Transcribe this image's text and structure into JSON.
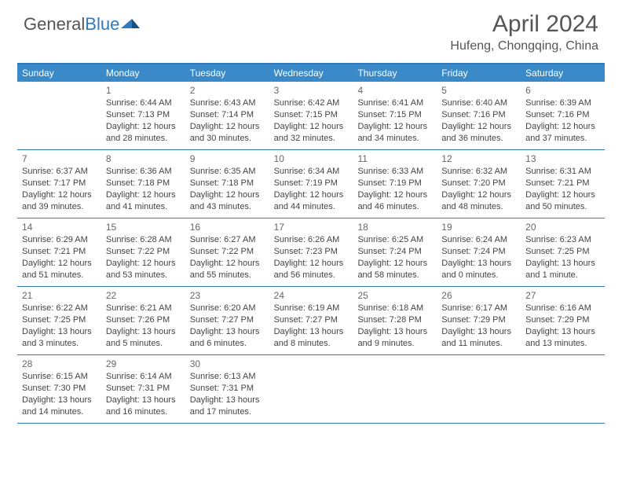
{
  "brand": {
    "name_a": "General",
    "name_b": "Blue"
  },
  "title": "April 2024",
  "location": "Hufeng, Chongqing, China",
  "colors": {
    "header_bg": "#3a8ac9",
    "border": "#2f7abf",
    "text": "#444444",
    "title_text": "#555555",
    "white": "#ffffff"
  },
  "weekdays": [
    "Sunday",
    "Monday",
    "Tuesday",
    "Wednesday",
    "Thursday",
    "Friday",
    "Saturday"
  ],
  "weeks": [
    [
      null,
      {
        "n": "1",
        "sr": "Sunrise: 6:44 AM",
        "ss": "Sunset: 7:13 PM",
        "d1": "Daylight: 12 hours",
        "d2": "and 28 minutes."
      },
      {
        "n": "2",
        "sr": "Sunrise: 6:43 AM",
        "ss": "Sunset: 7:14 PM",
        "d1": "Daylight: 12 hours",
        "d2": "and 30 minutes."
      },
      {
        "n": "3",
        "sr": "Sunrise: 6:42 AM",
        "ss": "Sunset: 7:15 PM",
        "d1": "Daylight: 12 hours",
        "d2": "and 32 minutes."
      },
      {
        "n": "4",
        "sr": "Sunrise: 6:41 AM",
        "ss": "Sunset: 7:15 PM",
        "d1": "Daylight: 12 hours",
        "d2": "and 34 minutes."
      },
      {
        "n": "5",
        "sr": "Sunrise: 6:40 AM",
        "ss": "Sunset: 7:16 PM",
        "d1": "Daylight: 12 hours",
        "d2": "and 36 minutes."
      },
      {
        "n": "6",
        "sr": "Sunrise: 6:39 AM",
        "ss": "Sunset: 7:16 PM",
        "d1": "Daylight: 12 hours",
        "d2": "and 37 minutes."
      }
    ],
    [
      {
        "n": "7",
        "sr": "Sunrise: 6:37 AM",
        "ss": "Sunset: 7:17 PM",
        "d1": "Daylight: 12 hours",
        "d2": "and 39 minutes."
      },
      {
        "n": "8",
        "sr": "Sunrise: 6:36 AM",
        "ss": "Sunset: 7:18 PM",
        "d1": "Daylight: 12 hours",
        "d2": "and 41 minutes."
      },
      {
        "n": "9",
        "sr": "Sunrise: 6:35 AM",
        "ss": "Sunset: 7:18 PM",
        "d1": "Daylight: 12 hours",
        "d2": "and 43 minutes."
      },
      {
        "n": "10",
        "sr": "Sunrise: 6:34 AM",
        "ss": "Sunset: 7:19 PM",
        "d1": "Daylight: 12 hours",
        "d2": "and 44 minutes."
      },
      {
        "n": "11",
        "sr": "Sunrise: 6:33 AM",
        "ss": "Sunset: 7:19 PM",
        "d1": "Daylight: 12 hours",
        "d2": "and 46 minutes."
      },
      {
        "n": "12",
        "sr": "Sunrise: 6:32 AM",
        "ss": "Sunset: 7:20 PM",
        "d1": "Daylight: 12 hours",
        "d2": "and 48 minutes."
      },
      {
        "n": "13",
        "sr": "Sunrise: 6:31 AM",
        "ss": "Sunset: 7:21 PM",
        "d1": "Daylight: 12 hours",
        "d2": "and 50 minutes."
      }
    ],
    [
      {
        "n": "14",
        "sr": "Sunrise: 6:29 AM",
        "ss": "Sunset: 7:21 PM",
        "d1": "Daylight: 12 hours",
        "d2": "and 51 minutes."
      },
      {
        "n": "15",
        "sr": "Sunrise: 6:28 AM",
        "ss": "Sunset: 7:22 PM",
        "d1": "Daylight: 12 hours",
        "d2": "and 53 minutes."
      },
      {
        "n": "16",
        "sr": "Sunrise: 6:27 AM",
        "ss": "Sunset: 7:22 PM",
        "d1": "Daylight: 12 hours",
        "d2": "and 55 minutes."
      },
      {
        "n": "17",
        "sr": "Sunrise: 6:26 AM",
        "ss": "Sunset: 7:23 PM",
        "d1": "Daylight: 12 hours",
        "d2": "and 56 minutes."
      },
      {
        "n": "18",
        "sr": "Sunrise: 6:25 AM",
        "ss": "Sunset: 7:24 PM",
        "d1": "Daylight: 12 hours",
        "d2": "and 58 minutes."
      },
      {
        "n": "19",
        "sr": "Sunrise: 6:24 AM",
        "ss": "Sunset: 7:24 PM",
        "d1": "Daylight: 13 hours",
        "d2": "and 0 minutes."
      },
      {
        "n": "20",
        "sr": "Sunrise: 6:23 AM",
        "ss": "Sunset: 7:25 PM",
        "d1": "Daylight: 13 hours",
        "d2": "and 1 minute."
      }
    ],
    [
      {
        "n": "21",
        "sr": "Sunrise: 6:22 AM",
        "ss": "Sunset: 7:25 PM",
        "d1": "Daylight: 13 hours",
        "d2": "and 3 minutes."
      },
      {
        "n": "22",
        "sr": "Sunrise: 6:21 AM",
        "ss": "Sunset: 7:26 PM",
        "d1": "Daylight: 13 hours",
        "d2": "and 5 minutes."
      },
      {
        "n": "23",
        "sr": "Sunrise: 6:20 AM",
        "ss": "Sunset: 7:27 PM",
        "d1": "Daylight: 13 hours",
        "d2": "and 6 minutes."
      },
      {
        "n": "24",
        "sr": "Sunrise: 6:19 AM",
        "ss": "Sunset: 7:27 PM",
        "d1": "Daylight: 13 hours",
        "d2": "and 8 minutes."
      },
      {
        "n": "25",
        "sr": "Sunrise: 6:18 AM",
        "ss": "Sunset: 7:28 PM",
        "d1": "Daylight: 13 hours",
        "d2": "and 9 minutes."
      },
      {
        "n": "26",
        "sr": "Sunrise: 6:17 AM",
        "ss": "Sunset: 7:29 PM",
        "d1": "Daylight: 13 hours",
        "d2": "and 11 minutes."
      },
      {
        "n": "27",
        "sr": "Sunrise: 6:16 AM",
        "ss": "Sunset: 7:29 PM",
        "d1": "Daylight: 13 hours",
        "d2": "and 13 minutes."
      }
    ],
    [
      {
        "n": "28",
        "sr": "Sunrise: 6:15 AM",
        "ss": "Sunset: 7:30 PM",
        "d1": "Daylight: 13 hours",
        "d2": "and 14 minutes."
      },
      {
        "n": "29",
        "sr": "Sunrise: 6:14 AM",
        "ss": "Sunset: 7:31 PM",
        "d1": "Daylight: 13 hours",
        "d2": "and 16 minutes."
      },
      {
        "n": "30",
        "sr": "Sunrise: 6:13 AM",
        "ss": "Sunset: 7:31 PM",
        "d1": "Daylight: 13 hours",
        "d2": "and 17 minutes."
      },
      null,
      null,
      null,
      null
    ]
  ]
}
